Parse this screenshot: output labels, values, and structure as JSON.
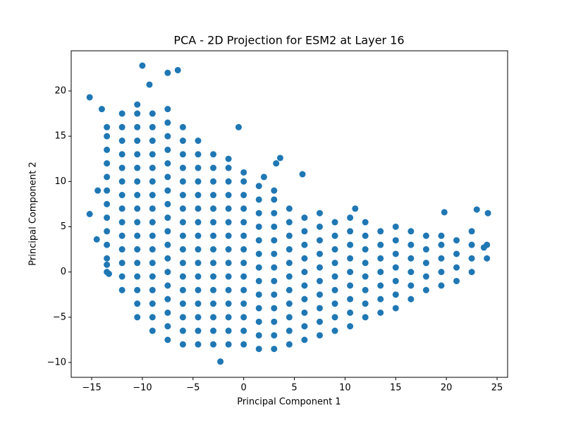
{
  "chart_data": {
    "type": "scatter",
    "title": "PCA - 2D Projection for ESM2 at Layer 16",
    "x_label": "Principal Component 1",
    "y_label": "Principal Component 2",
    "color": "#1f77b4",
    "xlim": [
      -17.02,
      26.04
    ],
    "ylim": [
      -11.64,
      24.44
    ],
    "xticks": [
      {
        "value": -15,
        "label": "−15"
      },
      {
        "value": -10,
        "label": "−10"
      },
      {
        "value": -5,
        "label": "−5"
      },
      0,
      5,
      10,
      15,
      20,
      25
    ],
    "yticks": [
      {
        "value": -10,
        "label": "−10"
      },
      {
        "value": -5,
        "label": "−5"
      },
      0,
      5,
      10,
      15,
      20
    ],
    "x": [
      -13.5,
      -13.5,
      -13.5,
      -13.5,
      -13.5,
      -13.5,
      -13.5,
      -13.5,
      -13.5,
      -13.5,
      -13.5,
      -13.5,
      -12,
      -12,
      -12,
      -12,
      -12,
      -12,
      -12,
      -12,
      -12,
      -12,
      -12,
      -12,
      -12,
      -12,
      -10.5,
      -10.5,
      -10.5,
      -10.5,
      -10.5,
      -10.5,
      -10.5,
      -10.5,
      -10.5,
      -10.5,
      -10.5,
      -10.5,
      -10.5,
      -10.5,
      -10.5,
      -10.5,
      -10.5,
      -9,
      -9,
      -9,
      -9,
      -9,
      -9,
      -9,
      -9,
      -9,
      -9,
      -9,
      -9,
      -9,
      -9,
      -9,
      -9,
      -9,
      -7.5,
      -7.5,
      -7.5,
      -7.5,
      -7.5,
      -7.5,
      -7.5,
      -7.5,
      -7.5,
      -7.5,
      -7.5,
      -7.5,
      -7.5,
      -7.5,
      -7.5,
      -7.5,
      -7.5,
      -7.5,
      -6,
      -6,
      -6,
      -6,
      -6,
      -6,
      -6,
      -6,
      -6,
      -6,
      -6,
      -6,
      -6,
      -6,
      -6,
      -6,
      -6,
      -4.5,
      -4.5,
      -4.5,
      -4.5,
      -4.5,
      -4.5,
      -4.5,
      -4.5,
      -4.5,
      -4.5,
      -4.5,
      -4.5,
      -4.5,
      -4.5,
      -4.5,
      -4.5,
      -3,
      -3,
      -3,
      -3,
      -3,
      -3,
      -3,
      -3,
      -3,
      -3,
      -3,
      -3,
      -3,
      -3,
      -3,
      -1.5,
      -1.5,
      -1.5,
      -1.5,
      -1.5,
      -1.5,
      -1.5,
      -1.5,
      -1.5,
      -1.5,
      -1.5,
      -1.5,
      -1.5,
      -1.5,
      -1.5,
      0,
      0,
      0,
      0,
      0,
      0,
      0,
      0,
      0,
      0,
      0,
      0,
      0,
      0,
      1.5,
      1.5,
      1.5,
      1.5,
      1.5,
      1.5,
      1.5,
      1.5,
      1.5,
      1.5,
      1.5,
      1.5,
      1.5,
      3,
      3,
      3,
      3,
      3,
      3,
      3,
      3,
      3,
      3,
      3,
      3,
      3,
      4.5,
      4.5,
      4.5,
      4.5,
      4.5,
      4.5,
      4.5,
      4.5,
      4.5,
      4.5,
      4.5,
      6,
      6,
      6,
      6,
      6,
      6,
      6,
      6,
      6,
      6,
      7.5,
      7.5,
      7.5,
      7.5,
      7.5,
      7.5,
      7.5,
      7.5,
      7.5,
      7.5,
      9,
      9,
      9,
      9,
      9,
      9,
      9,
      9,
      9,
      10.5,
      10.5,
      10.5,
      10.5,
      10.5,
      10.5,
      10.5,
      10.5,
      10.5,
      12,
      12,
      12,
      12,
      12,
      12,
      12,
      12,
      13.5,
      13.5,
      13.5,
      13.5,
      13.5,
      13.5,
      13.5,
      15,
      15,
      15,
      15,
      15,
      15,
      15,
      16.5,
      16.5,
      16.5,
      16.5,
      16.5,
      16.5,
      18,
      18,
      18,
      18,
      18,
      19.5,
      19.5,
      19.5,
      19.5,
      19.5,
      21,
      21,
      21,
      21,
      22.5,
      22.5,
      22.5,
      22.5,
      24,
      24,
      -15.2,
      -14,
      -10,
      -7.5,
      -6.5,
      -9.3,
      -15.2,
      -14.4,
      -14.5,
      -13.5,
      -13.3,
      3.2,
      3.6,
      5.8,
      -2.3,
      19.8,
      23,
      24.1,
      23.7,
      -0.5,
      2,
      11
    ],
    "values": [
      0,
      1.5,
      3,
      4.5,
      6,
      7.5,
      9,
      10.5,
      12,
      13.5,
      15,
      16,
      -2,
      -0.5,
      1,
      2.5,
      4,
      5.5,
      7,
      8.5,
      10,
      11.5,
      13,
      14.5,
      16,
      17.5,
      -5,
      -3.5,
      -2,
      -0.5,
      1,
      2.5,
      4,
      5.5,
      7,
      8.5,
      10,
      11.5,
      13,
      14.5,
      16,
      17.5,
      18.5,
      -6.5,
      -5,
      -3.5,
      -2,
      -0.5,
      1,
      2.5,
      4,
      5.5,
      7,
      8.5,
      10,
      11.5,
      13,
      14.5,
      16,
      17.5,
      -7.5,
      -6,
      -4.5,
      -3,
      -1.5,
      0,
      1.5,
      3,
      4.5,
      6,
      7.5,
      9,
      10.5,
      12,
      13.5,
      15,
      16.5,
      18,
      -8,
      -6.5,
      -5,
      -3.5,
      -2,
      -0.5,
      1,
      2.5,
      4,
      5.5,
      7,
      8.5,
      10,
      11.5,
      13,
      14.5,
      16,
      -8,
      -6.5,
      -5,
      -3.5,
      -2,
      -0.5,
      1,
      2.5,
      4,
      5.5,
      7,
      8.5,
      10,
      11.5,
      13,
      14.5,
      -8,
      -6.5,
      -5,
      -3.5,
      -2,
      -0.5,
      1,
      2.5,
      4,
      5.5,
      7,
      8.5,
      10,
      11.5,
      13,
      -8,
      -6.5,
      -5,
      -3.5,
      -2,
      -0.5,
      1,
      2.5,
      4,
      5.5,
      7,
      8.5,
      10,
      11.5,
      12.5,
      -8,
      -6.5,
      -5,
      -3.5,
      -2,
      -0.5,
      1,
      2.5,
      4,
      5.5,
      7,
      8.5,
      10,
      11,
      -8.5,
      -7,
      -5.5,
      -4,
      -2.5,
      -1,
      0.5,
      2,
      3.5,
      5,
      6.5,
      8,
      9.5,
      -8.5,
      -7,
      -5.5,
      -4,
      -2.5,
      -1,
      0.5,
      2,
      3.5,
      5,
      6.5,
      8,
      9,
      -8,
      -6.5,
      -5,
      -3.5,
      -2,
      -0.5,
      1,
      2.5,
      4,
      5.5,
      7,
      -7.5,
      -6,
      -4.5,
      -3,
      -1.5,
      0,
      1.5,
      3,
      4.5,
      6,
      -7,
      -5.5,
      -4,
      -2.5,
      -1,
      0.5,
      2,
      3.5,
      5,
      6.5,
      -6.5,
      -5,
      -3.5,
      -2,
      -0.5,
      1,
      2.5,
      4,
      5.5,
      -6,
      -4.5,
      -3,
      -1.5,
      0,
      1.5,
      3,
      4.5,
      6,
      -5,
      -3.5,
      -2,
      -0.5,
      1,
      2.5,
      4,
      5.5,
      -4.5,
      -3,
      -1.5,
      0,
      1.5,
      3,
      4.5,
      -4,
      -2.5,
      -1,
      0.5,
      2,
      3.5,
      5,
      -3,
      -1.5,
      0,
      1.5,
      3,
      4.5,
      -2,
      -0.5,
      1,
      2.5,
      4,
      -1.5,
      0,
      1.5,
      3,
      4,
      -1,
      0.5,
      2,
      3.5,
      0,
      1.5,
      3,
      4.5,
      1.5,
      3,
      19.3,
      18,
      22.8,
      22,
      22.3,
      20.7,
      6.4,
      9,
      3.6,
      0.8,
      -0.2,
      12,
      12.6,
      10.8,
      -9.9,
      6.6,
      6.9,
      6.5,
      2.7,
      16,
      10.5,
      7
    ]
  }
}
